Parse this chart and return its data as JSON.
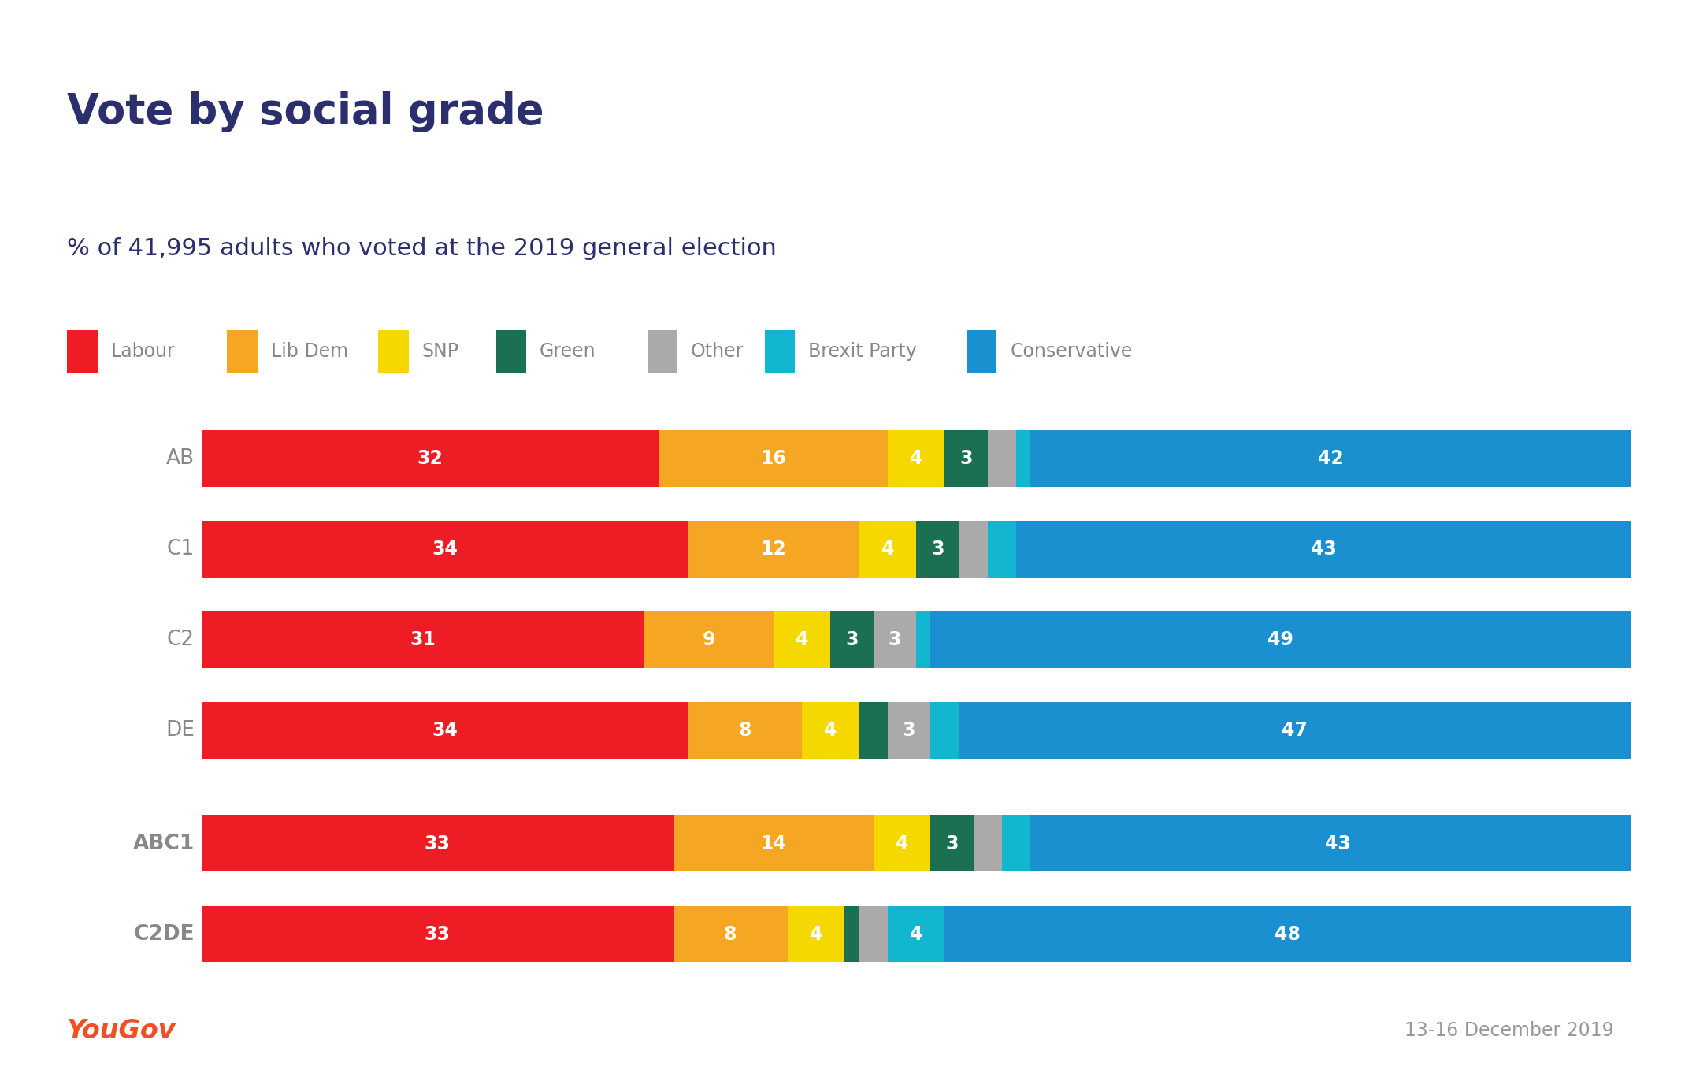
{
  "title": "Vote by social grade",
  "subtitle": "% of 41,995 adults who voted at the 2019 general election",
  "background_color": "#eaeaf0",
  "plot_background_color": "#ffffff",
  "categories": [
    "AB",
    "C1",
    "C2",
    "DE",
    "ABC1",
    "C2DE"
  ],
  "bold_categories": [
    false,
    false,
    false,
    false,
    true,
    true
  ],
  "parties": [
    "Labour",
    "Lib Dem",
    "SNP",
    "Green",
    "Other",
    "Brexit Party",
    "Conservative"
  ],
  "colors": [
    "#ee1c25",
    "#f5a623",
    "#f5d800",
    "#1a7050",
    "#aaaaaa",
    "#12b6cf",
    "#1a90d0"
  ],
  "data": {
    "AB": [
      32,
      16,
      4,
      3,
      2,
      1,
      42
    ],
    "C1": [
      34,
      12,
      4,
      3,
      2,
      2,
      43
    ],
    "C2": [
      31,
      9,
      4,
      3,
      3,
      1,
      49
    ],
    "DE": [
      34,
      8,
      4,
      2,
      3,
      2,
      47
    ],
    "ABC1": [
      33,
      14,
      4,
      3,
      2,
      2,
      43
    ],
    "C2DE": [
      33,
      8,
      4,
      1,
      2,
      4,
      48
    ]
  },
  "show_label_threshold": 3,
  "yougov_color": "#f05023",
  "date_text": "13-16 December 2019",
  "footer_text": "YouGov",
  "title_color": "#2b2f6e",
  "subtitle_color": "#2b2f6e",
  "label_fontsize": 17,
  "category_fontsize": 19,
  "legend_fontsize": 17,
  "title_fontsize": 38,
  "subtitle_fontsize": 22
}
